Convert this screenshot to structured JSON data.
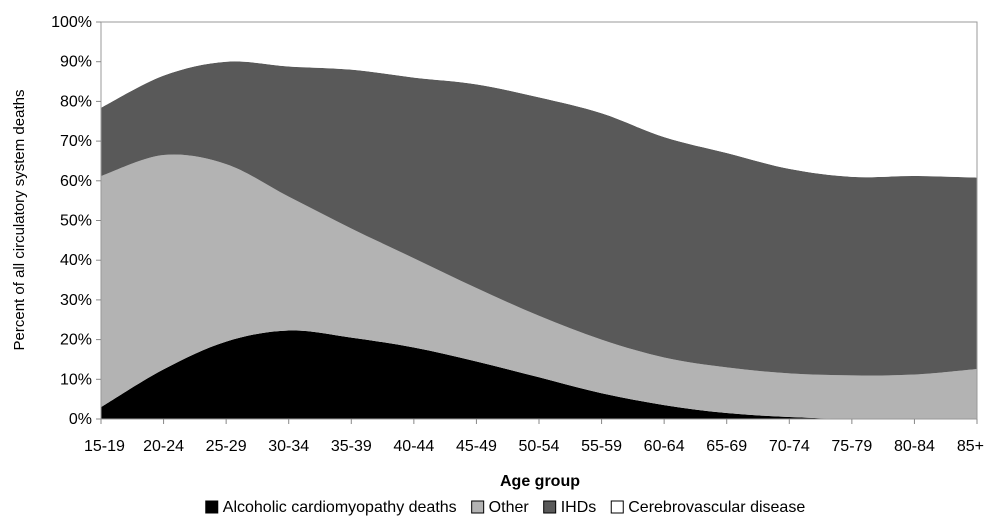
{
  "chart_data": {
    "type": "area",
    "stacked": true,
    "title": "",
    "xlabel": "Age group",
    "ylabel": "Percent of all circulatory system deaths",
    "ylim": [
      0,
      100
    ],
    "y_ticks": [
      "0%",
      "10%",
      "20%",
      "30%",
      "40%",
      "50%",
      "60%",
      "70%",
      "80%",
      "90%",
      "100%"
    ],
    "categories": [
      "15-19",
      "20-24",
      "25-29",
      "30-34",
      "35-39",
      "40-44",
      "45-49",
      "50-54",
      "55-59",
      "60-64",
      "65-69",
      "70-74",
      "75-79",
      "80-84",
      "85+"
    ],
    "grid": false,
    "legend_position": "bottom",
    "series": [
      {
        "name": "Alcoholic cardiomyopathy deaths",
        "color": "#000000",
        "values": [
          3,
          12.5,
          19.5,
          22.3,
          20.5,
          18,
          14.5,
          10.5,
          6.5,
          3.5,
          1.5,
          0.5,
          0,
          0,
          0
        ]
      },
      {
        "name": "Other",
        "color": "#b3b3b3",
        "values": [
          58.2,
          54,
          44.7,
          33.7,
          27.5,
          22.5,
          18.5,
          15.5,
          13.5,
          12,
          11.5,
          11,
          11,
          11.2,
          12.6
        ]
      },
      {
        "name": "IHDs",
        "color": "#595959",
        "values": [
          17.2,
          20,
          25.8,
          32.8,
          40,
          45.5,
          51.3,
          55,
          57,
          55.5,
          54,
          51.5,
          50,
          50,
          48.2
        ]
      },
      {
        "name": "Cerebrovascular disease",
        "color": "#ffffff",
        "values": [
          21.6,
          13.5,
          10,
          11.2,
          12,
          14,
          15.7,
          19,
          23,
          29,
          33,
          37,
          39,
          38.8,
          39.2
        ]
      }
    ]
  }
}
